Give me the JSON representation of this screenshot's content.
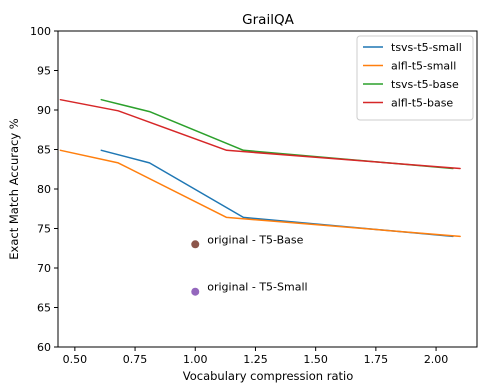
{
  "chart_data": {
    "type": "line",
    "title": "GrailQA",
    "xlabel": "Vocabulary compression ratio",
    "ylabel": "Exact Match Accuracy %",
    "xlim": [
      0.43,
      2.17
    ],
    "ylim": [
      60,
      100
    ],
    "xticks": [
      0.5,
      0.75,
      1.0,
      1.25,
      1.5,
      1.75,
      2.0
    ],
    "xtick_labels": [
      "0.50",
      "0.75",
      "1.00",
      "1.25",
      "1.50",
      "1.75",
      "2.00"
    ],
    "yticks": [
      60,
      65,
      70,
      75,
      80,
      85,
      90,
      95,
      100
    ],
    "ytick_labels": [
      "60",
      "65",
      "70",
      "75",
      "80",
      "85",
      "90",
      "95",
      "100"
    ],
    "grid": false,
    "legend_position": "top-right",
    "series": [
      {
        "name": "tsvs-t5-small",
        "color": "#1f77b4",
        "points": [
          [
            0.61,
            84.9
          ],
          [
            0.81,
            83.3
          ],
          [
            1.2,
            76.4
          ],
          [
            2.07,
            74.0
          ]
        ]
      },
      {
        "name": "alfl-t5-small",
        "color": "#ff7f0e",
        "points": [
          [
            0.44,
            84.9
          ],
          [
            0.68,
            83.3
          ],
          [
            1.13,
            76.4
          ],
          [
            2.1,
            74.0
          ]
        ]
      },
      {
        "name": "tsvs-t5-base",
        "color": "#2ca02c",
        "points": [
          [
            0.61,
            91.3
          ],
          [
            0.81,
            89.8
          ],
          [
            1.2,
            84.9
          ],
          [
            2.07,
            82.6
          ]
        ]
      },
      {
        "name": "alfl-t5-base",
        "color": "#d62728",
        "points": [
          [
            0.44,
            91.3
          ],
          [
            0.68,
            89.9
          ],
          [
            1.13,
            84.9
          ],
          [
            2.1,
            82.6
          ]
        ]
      }
    ],
    "annotations": [
      {
        "label": "original - T5-Base",
        "x": 1.0,
        "y": 73.0,
        "color": "#8c564b"
      },
      {
        "label": "original - T5-Small",
        "x": 1.0,
        "y": 67.0,
        "color": "#9467bd"
      }
    ]
  }
}
